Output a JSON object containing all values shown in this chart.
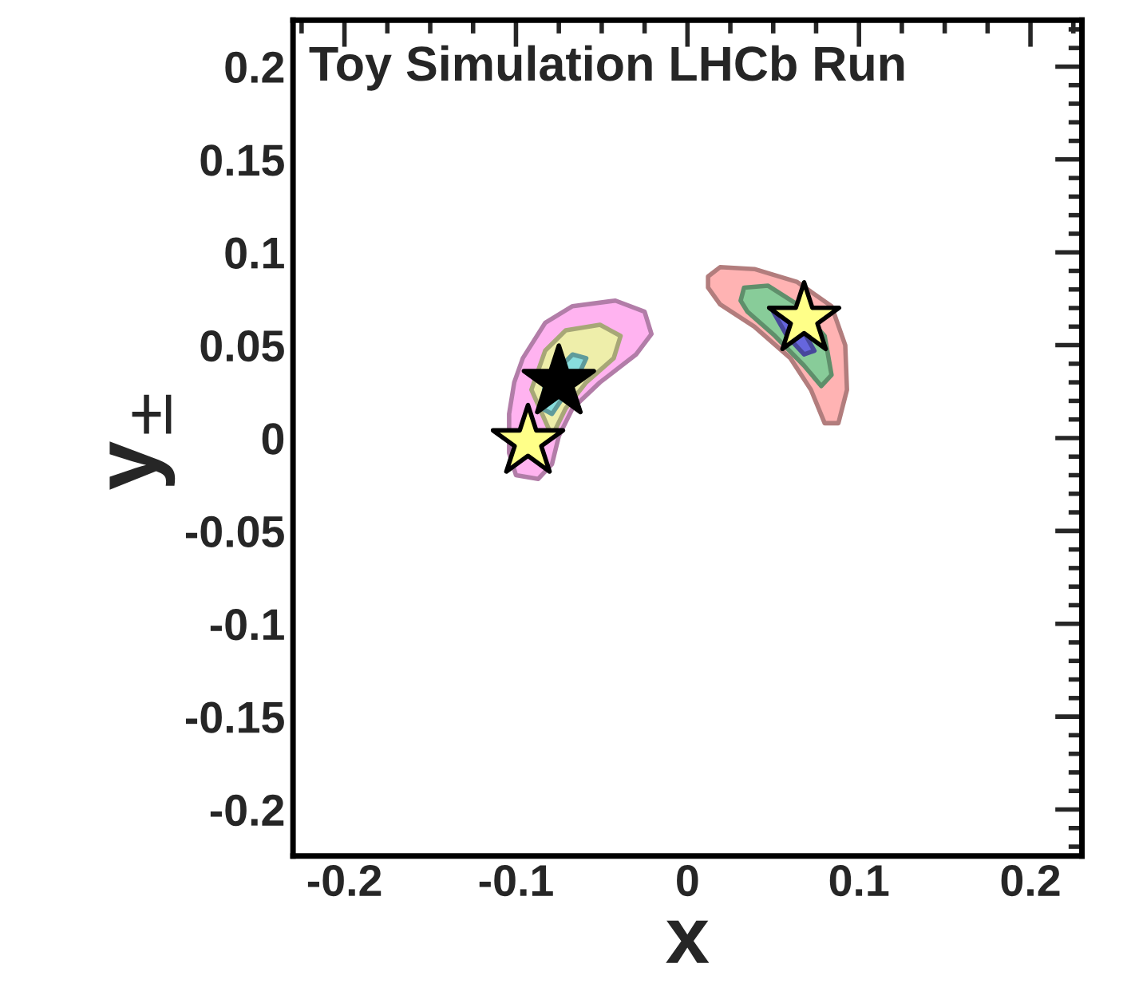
{
  "chart_data": {
    "type": "area",
    "xlabel": "x",
    "ylabel": "y$_{±}$",
    "annotations": [
      "Toy Simulation LHCb Run"
    ],
    "xlim": [
      -0.23,
      0.23
    ],
    "ylim": [
      -0.225,
      0.225
    ],
    "xticks": [
      -0.2,
      -0.1,
      0,
      0.1,
      0.2
    ],
    "yticks": [
      -0.2,
      -0.15,
      -0.1,
      -0.05,
      0,
      0.05,
      0.1,
      0.15,
      0.2
    ],
    "series": [
      {
        "color": "#ffb3f0",
        "x": [
          -0.096,
          -0.083,
          -0.067,
          -0.042,
          -0.025,
          -0.021,
          -0.03,
          -0.051,
          -0.067,
          -0.075,
          -0.079,
          -0.087,
          -0.1,
          -0.104,
          -0.104,
          -0.101
        ],
        "values": [
          0.043,
          0.062,
          0.071,
          0.074,
          0.068,
          0.056,
          0.045,
          0.03,
          0.016,
          0.001,
          -0.014,
          -0.022,
          -0.02,
          -0.008,
          0.013,
          0.03
        ]
      },
      {
        "color": "#eeeeaa",
        "x": [
          -0.091,
          -0.083,
          -0.071,
          -0.051,
          -0.039,
          -0.043,
          -0.059,
          -0.071,
          -0.079
        ],
        "values": [
          0.026,
          0.047,
          0.058,
          0.061,
          0.055,
          0.043,
          0.03,
          0.016,
          0.001
        ]
      },
      {
        "color": "#88dddd",
        "x": [
          -0.083,
          -0.075,
          -0.067,
          -0.059,
          -0.063,
          -0.071,
          -0.079,
          -0.085
        ],
        "values": [
          0.03,
          null,
          0.045,
          0.043,
          0.035,
          null,
          0.013,
          0.016
        ]
      },
      {
        "color": "#ffb3b3",
        "x": [
          0.012,
          0.019,
          0.039,
          0.064,
          0.084,
          0.092,
          0.093,
          0.088,
          0.08,
          0.072,
          0.06,
          0.039,
          0.019,
          0.012
        ],
        "values": [
          0.087,
          0.092,
          0.091,
          0.084,
          0.071,
          0.05,
          0.026,
          0.008,
          0.008,
          0.026,
          0.043,
          0.06,
          0.072,
          0.081
        ]
      },
      {
        "color": "#88cc99",
        "x": [
          0.033,
          0.047,
          0.064,
          0.08,
          0.084,
          0.078,
          0.068,
          0.051,
          0.035,
          0.031
        ],
        "values": [
          0.081,
          0.082,
          0.072,
          0.055,
          0.034,
          0.028,
          0.039,
          0.055,
          0.068,
          0.074
        ]
      },
      {
        "color": "#6666dd",
        "x": [
          0.05,
          0.06,
          0.07,
          0.074,
          0.068,
          0.058
        ],
        "values": [
          0.068,
          0.07,
          null,
          0.047,
          0.045,
          0.055
        ]
      },
      {
        "type": "scatter",
        "marker": "star",
        "color": "#000000",
        "x": [
          -0.075
        ],
        "values": [
          0.03
        ]
      },
      {
        "type": "scatter",
        "marker": "star",
        "color": "#ffff88",
        "x": [
          -0.093,
          0.068
        ],
        "values": [
          -0.002,
          0.064
        ]
      }
    ]
  }
}
